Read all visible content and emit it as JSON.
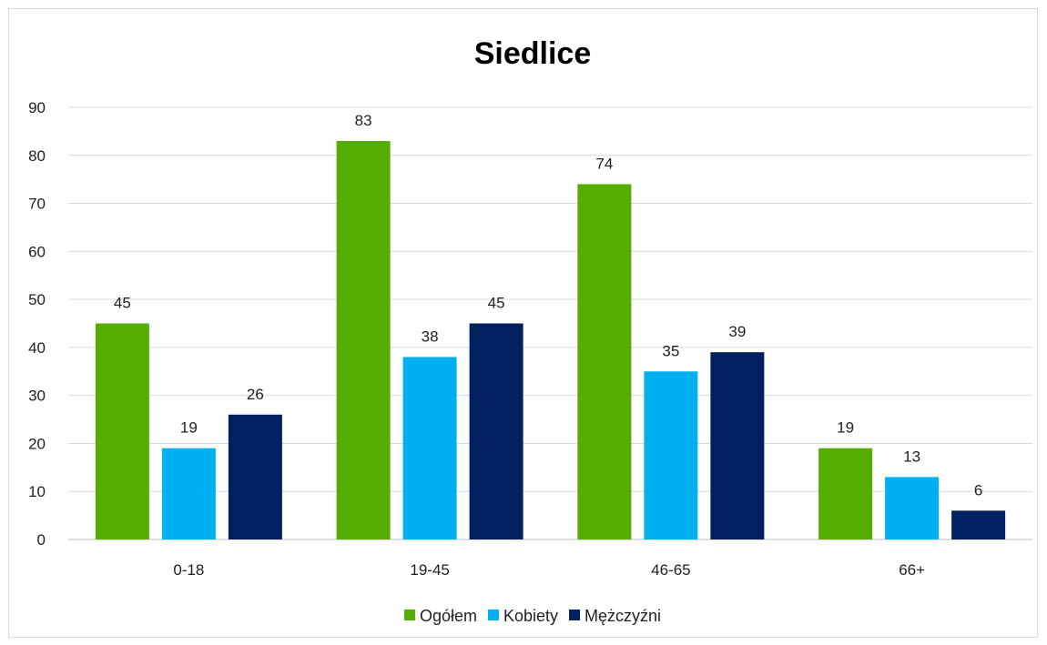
{
  "chart_data": {
    "type": "bar",
    "title": "Siedlice",
    "categories": [
      "0-18",
      "19-45",
      "46-65",
      "66+"
    ],
    "series": [
      {
        "name": "Ogółem",
        "color": "#55ad00",
        "values": [
          45,
          83,
          74,
          19
        ]
      },
      {
        "name": "Kobiety",
        "color": "#00b0f0",
        "values": [
          19,
          38,
          35,
          13
        ]
      },
      {
        "name": "Mężczyźni",
        "color": "#002060",
        "values": [
          26,
          45,
          39,
          6
        ]
      }
    ],
    "ylim": [
      0,
      90
    ],
    "yticks": [
      0,
      10,
      20,
      30,
      40,
      50,
      60,
      70,
      80,
      90
    ],
    "grid": true,
    "legend_position": "bottom",
    "data_labels": true
  }
}
